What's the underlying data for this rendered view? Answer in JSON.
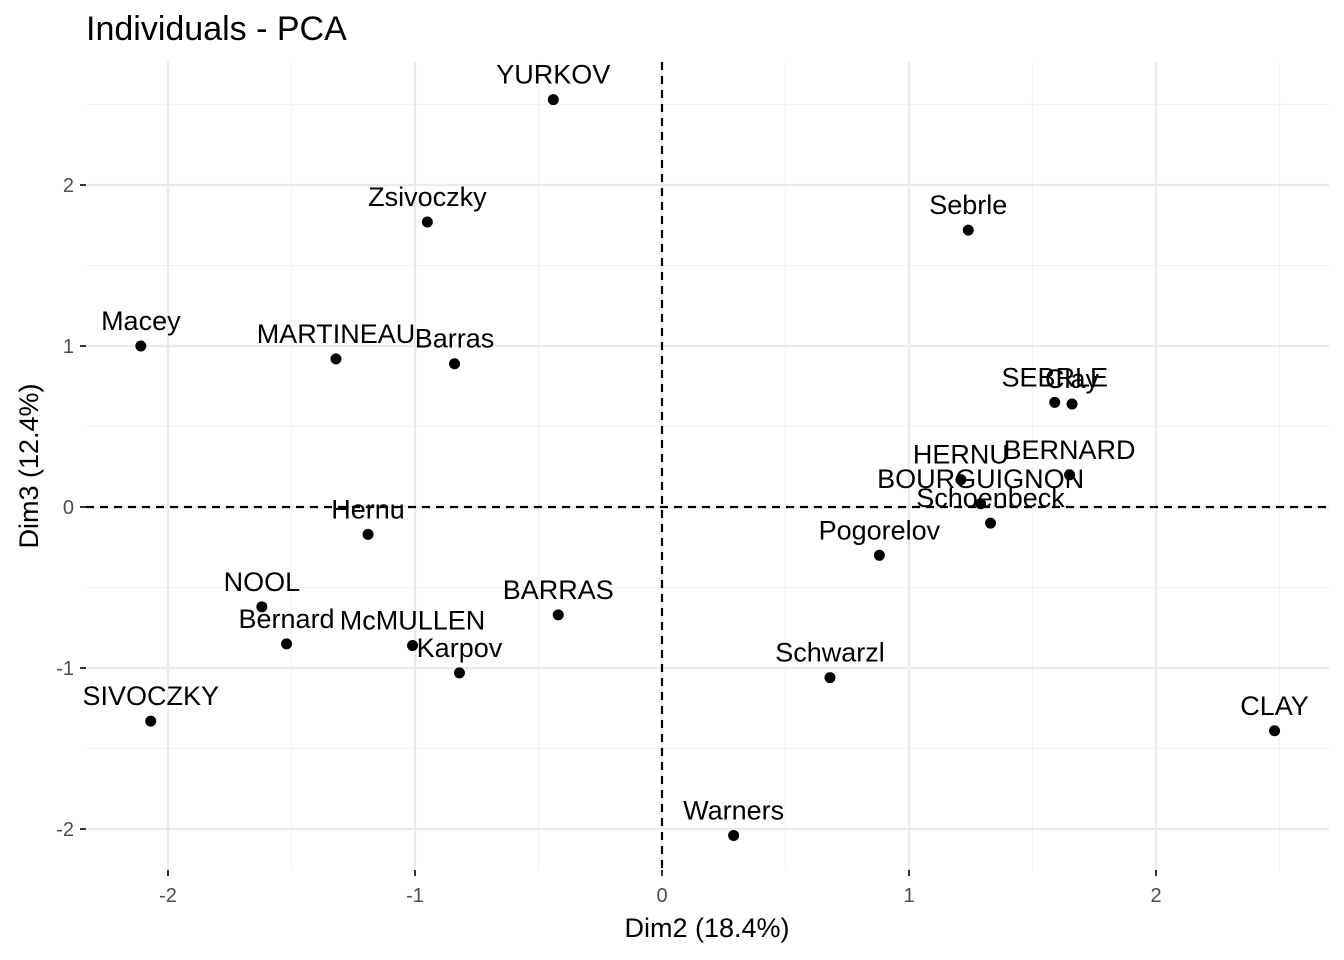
{
  "chart_data": {
    "type": "scatter",
    "title": "Individuals - PCA",
    "xlabel": "Dim2 (18.4%)",
    "ylabel": "Dim3 (12.4%)",
    "xlim": [
      -2.35,
      2.7
    ],
    "ylim": [
      -2.27,
      2.72
    ],
    "xticks": [
      -2,
      -1,
      0,
      1,
      2
    ],
    "yticks": [
      -2,
      -1,
      0,
      1,
      2
    ],
    "grid": true,
    "reference_lines": {
      "x": 0,
      "y": 0,
      "style": "dashed"
    },
    "points": [
      {
        "name": "YURKOV",
        "x": -0.44,
        "y": 2.53
      },
      {
        "name": "Zsivoczky",
        "x": -0.95,
        "y": 1.77
      },
      {
        "name": "Sebrle",
        "x": 1.24,
        "y": 1.72
      },
      {
        "name": "Macey",
        "x": -2.11,
        "y": 1.0
      },
      {
        "name": "MARTINEAU",
        "x": -1.32,
        "y": 0.92
      },
      {
        "name": "Barras",
        "x": -0.84,
        "y": 0.89
      },
      {
        "name": "SEBRLE",
        "x": 1.59,
        "y": 0.65
      },
      {
        "name": "Clay",
        "x": 1.66,
        "y": 0.64
      },
      {
        "name": "BERNARD",
        "x": 1.65,
        "y": 0.2
      },
      {
        "name": "HERNU",
        "x": 1.21,
        "y": 0.17
      },
      {
        "name": "BOURGUIGNON",
        "x": 1.29,
        "y": 0.02
      },
      {
        "name": "Schoenbeck",
        "x": 1.33,
        "y": -0.1
      },
      {
        "name": "Hernu",
        "x": -1.19,
        "y": -0.17
      },
      {
        "name": "Pogorelov",
        "x": 0.88,
        "y": -0.3
      },
      {
        "name": "NOOL",
        "x": -1.62,
        "y": -0.62
      },
      {
        "name": "BARRAS",
        "x": -0.42,
        "y": -0.67
      },
      {
        "name": "Bernard",
        "x": -1.52,
        "y": -0.85
      },
      {
        "name": "McMULLEN",
        "x": -1.01,
        "y": -0.86
      },
      {
        "name": "Karpov",
        "x": -0.82,
        "y": -1.03
      },
      {
        "name": "Schwarzl",
        "x": 0.68,
        "y": -1.06
      },
      {
        "name": "SIVOCZKY",
        "x": -2.07,
        "y": -1.33
      },
      {
        "name": "CLAY",
        "x": 2.48,
        "y": -1.39
      },
      {
        "name": "Warners",
        "x": 0.29,
        "y": -2.04
      }
    ]
  }
}
